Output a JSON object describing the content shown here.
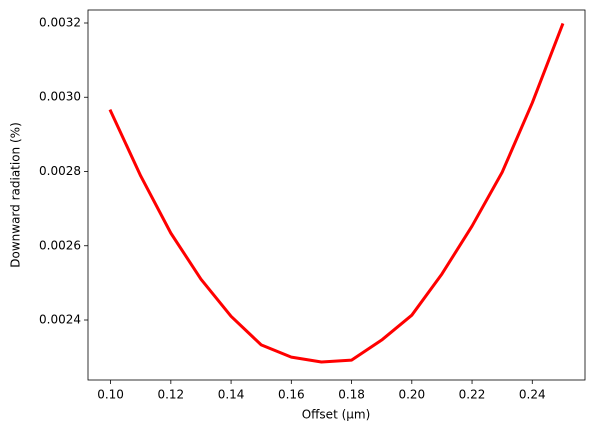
{
  "chart_data": {
    "type": "line",
    "x_label": "Offset (μm)",
    "y_label": "Downward radiation (%)",
    "x": [
      0.1,
      0.11,
      0.12,
      0.13,
      0.14,
      0.15,
      0.16,
      0.17,
      0.18,
      0.19,
      0.2,
      0.21,
      0.22,
      0.23,
      0.24,
      0.25
    ],
    "values": [
      0.002963,
      0.002788,
      0.002634,
      0.00251,
      0.00241,
      0.002333,
      0.0023,
      0.002287,
      0.002292,
      0.002346,
      0.002413,
      0.002524,
      0.002653,
      0.002798,
      0.002985,
      0.003195
    ],
    "color": "#ff0000",
    "xlim": [
      0.0925,
      0.2575
    ],
    "xticks": [
      {
        "value": 0.1,
        "label": "0.10"
      },
      {
        "value": 0.12,
        "label": "0.12"
      },
      {
        "value": 0.14,
        "label": "0.14"
      },
      {
        "value": 0.16,
        "label": "0.16"
      },
      {
        "value": 0.18,
        "label": "0.18"
      },
      {
        "value": 0.2,
        "label": "0.20"
      },
      {
        "value": 0.22,
        "label": "0.22"
      },
      {
        "value": 0.24,
        "label": "0.24"
      }
    ],
    "ylim": [
      0.0022384,
      0.003235
    ],
    "yticks": [
      0.0024,
      0.0026,
      0.0028,
      {
        "value": 0.003,
        "label": "0.0030"
      },
      0.0032
    ],
    "grid": false
  }
}
